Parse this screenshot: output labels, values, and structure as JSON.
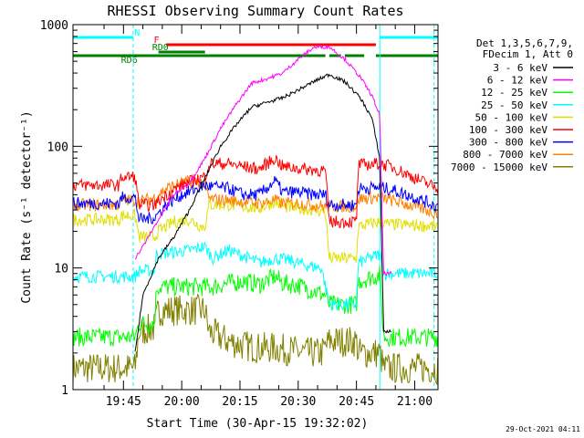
{
  "chart_data": {
    "type": "line",
    "title": "RHESSI Observing Summary Count Rates",
    "xlabel": "Start Time (30-Apr-15 19:32:02)",
    "ylabel": "Count Rate (s⁻¹ detector⁻¹)",
    "yscale": "log",
    "ylim": [
      1,
      1000
    ],
    "xlim_minutes": [
      0,
      94
    ],
    "x_ticks": [
      {
        "label": "19:45",
        "minute": 13
      },
      {
        "label": "20:00",
        "minute": 28
      },
      {
        "label": "20:15",
        "minute": 43
      },
      {
        "label": "20:30",
        "minute": 58
      },
      {
        "label": "20:45",
        "minute": 73
      },
      {
        "label": "21:00",
        "minute": 88
      }
    ],
    "y_ticks": [
      {
        "label": "1",
        "value": 1
      },
      {
        "label": "10",
        "value": 10
      },
      {
        "label": "100",
        "value": 100
      },
      {
        "label": "1000",
        "value": 1000
      }
    ],
    "legend_header": [
      "Det 1,3,5,6,7,9,",
      "FDecim 1, Att 0"
    ],
    "series": [
      {
        "name": "3 - 6 keV",
        "color": "#000000",
        "points": [
          [
            16,
            2
          ],
          [
            18,
            6
          ],
          [
            22,
            12
          ],
          [
            26,
            18
          ],
          [
            30,
            30
          ],
          [
            34,
            55
          ],
          [
            38,
            100
          ],
          [
            42,
            150
          ],
          [
            46,
            210
          ],
          [
            50,
            230
          ],
          [
            54,
            250
          ],
          [
            58,
            290
          ],
          [
            62,
            340
          ],
          [
            66,
            390
          ],
          [
            70,
            340
          ],
          [
            74,
            250
          ],
          [
            77,
            170
          ],
          [
            79,
            80
          ],
          [
            80,
            3
          ],
          [
            82,
            3
          ]
        ]
      },
      {
        "name": "6 - 12 keV",
        "color": "#ff00ff",
        "points": [
          [
            16,
            12
          ],
          [
            18,
            15
          ],
          [
            22,
            25
          ],
          [
            26,
            40
          ],
          [
            30,
            50
          ],
          [
            34,
            80
          ],
          [
            38,
            140
          ],
          [
            42,
            220
          ],
          [
            46,
            330
          ],
          [
            50,
            360
          ],
          [
            54,
            400
          ],
          [
            58,
            520
          ],
          [
            62,
            650
          ],
          [
            66,
            660
          ],
          [
            70,
            520
          ],
          [
            74,
            370
          ],
          [
            77,
            260
          ],
          [
            79,
            180
          ],
          [
            80,
            9
          ],
          [
            82,
            9
          ]
        ]
      },
      {
        "name": "12 - 25 keV",
        "color": "#00ff00",
        "points": [
          [
            0,
            2.7
          ],
          [
            16,
            2.7
          ],
          [
            17,
            3.5
          ],
          [
            21,
            3.5
          ],
          [
            21.5,
            7
          ],
          [
            36,
            7
          ],
          [
            40,
            7.5
          ],
          [
            44,
            7.8
          ],
          [
            48,
            7.3
          ],
          [
            52,
            8.5
          ],
          [
            54,
            7.5
          ],
          [
            58,
            7.2
          ],
          [
            62,
            6.5
          ],
          [
            65,
            6
          ],
          [
            66,
            5
          ],
          [
            73,
            5
          ],
          [
            73.5,
            7.8
          ],
          [
            79,
            8.8
          ],
          [
            80,
            2.7
          ],
          [
            94,
            2.7
          ]
        ]
      },
      {
        "name": "25 - 50 keV",
        "color": "#00ffff",
        "points": [
          [
            0,
            8.5
          ],
          [
            16,
            8.5
          ],
          [
            17,
            9.5
          ],
          [
            21,
            9.5
          ],
          [
            21.5,
            13
          ],
          [
            26,
            13.5
          ],
          [
            30,
            14
          ],
          [
            34,
            15
          ],
          [
            36,
            12
          ],
          [
            40,
            14
          ],
          [
            44,
            12.5
          ],
          [
            48,
            11
          ],
          [
            52,
            12
          ],
          [
            56,
            11.5
          ],
          [
            60,
            10.5
          ],
          [
            64,
            10
          ],
          [
            66,
            5
          ],
          [
            73,
            5
          ],
          [
            73.5,
            11
          ],
          [
            79,
            13
          ],
          [
            80,
            9
          ],
          [
            94,
            9
          ]
        ]
      },
      {
        "name": "50 - 100 keV",
        "color": "#e0e000",
        "points": [
          [
            0,
            25
          ],
          [
            12,
            25
          ],
          [
            12.5,
            27
          ],
          [
            16,
            27
          ],
          [
            17,
            18
          ],
          [
            21,
            18
          ],
          [
            22,
            20
          ],
          [
            26,
            24
          ],
          [
            30,
            25
          ],
          [
            33,
            22
          ],
          [
            34,
            22
          ],
          [
            35,
            33
          ],
          [
            40,
            33
          ],
          [
            44,
            32
          ],
          [
            48,
            31
          ],
          [
            52,
            35
          ],
          [
            54,
            32
          ],
          [
            58,
            31
          ],
          [
            62,
            30
          ],
          [
            65,
            29
          ],
          [
            66,
            12
          ],
          [
            73,
            12
          ],
          [
            73.5,
            22
          ],
          [
            79,
            24
          ],
          [
            80,
            23
          ],
          [
            94,
            22
          ]
        ]
      },
      {
        "name": "100 - 300 keV",
        "color": "#ff0000",
        "points": [
          [
            0,
            48
          ],
          [
            12,
            48
          ],
          [
            12.5,
            56
          ],
          [
            16,
            56
          ],
          [
            17,
            33
          ],
          [
            21,
            33
          ],
          [
            24,
            40
          ],
          [
            28,
            48
          ],
          [
            32,
            54
          ],
          [
            34,
            56
          ],
          [
            35,
            72
          ],
          [
            40,
            72
          ],
          [
            44,
            68
          ],
          [
            48,
            65
          ],
          [
            52,
            80
          ],
          [
            54,
            68
          ],
          [
            58,
            66
          ],
          [
            62,
            64
          ],
          [
            65,
            63
          ],
          [
            66,
            24
          ],
          [
            73,
            24
          ],
          [
            73.5,
            70
          ],
          [
            79,
            72
          ],
          [
            82,
            68
          ],
          [
            88,
            55
          ],
          [
            94,
            45
          ]
        ]
      },
      {
        "name": "300 - 800 keV",
        "color": "#0000ff",
        "points": [
          [
            0,
            34
          ],
          [
            12,
            34
          ],
          [
            12.5,
            38
          ],
          [
            16,
            38
          ],
          [
            17,
            25
          ],
          [
            21,
            26
          ],
          [
            24,
            33
          ],
          [
            28,
            40
          ],
          [
            32,
            45
          ],
          [
            34,
            48
          ],
          [
            35,
            47
          ],
          [
            40,
            45
          ],
          [
            44,
            40
          ],
          [
            48,
            40
          ],
          [
            52,
            52
          ],
          [
            54,
            42
          ],
          [
            58,
            42
          ],
          [
            62,
            40
          ],
          [
            65,
            40
          ],
          [
            66,
            33
          ],
          [
            73,
            33
          ],
          [
            73.5,
            45
          ],
          [
            79,
            46
          ],
          [
            82,
            44
          ],
          [
            88,
            38
          ],
          [
            94,
            32
          ]
        ]
      },
      {
        "name": "800 - 7000 keV",
        "color": "#ff8000",
        "points": [
          [
            0,
            33
          ],
          [
            12,
            33
          ],
          [
            12.5,
            36
          ],
          [
            16,
            36
          ],
          [
            17,
            35
          ],
          [
            21,
            38
          ],
          [
            24,
            45
          ],
          [
            28,
            50
          ],
          [
            32,
            52
          ],
          [
            34,
            48
          ],
          [
            35,
            37
          ],
          [
            40,
            36
          ],
          [
            44,
            35
          ],
          [
            48,
            34
          ],
          [
            52,
            36
          ],
          [
            54,
            34
          ],
          [
            58,
            34
          ],
          [
            62,
            33
          ],
          [
            65,
            32
          ],
          [
            66,
            32
          ],
          [
            73,
            32
          ],
          [
            73.5,
            37
          ],
          [
            79,
            38
          ],
          [
            82,
            36
          ],
          [
            88,
            32
          ],
          [
            94,
            28
          ]
        ]
      },
      {
        "name": "7000 - 15000 keV",
        "color": "#808000",
        "points": [
          [
            0,
            1.5
          ],
          [
            16,
            1.5
          ],
          [
            17,
            3
          ],
          [
            21,
            3.2
          ],
          [
            22,
            4.5
          ],
          [
            34,
            4.5
          ],
          [
            35,
            3
          ],
          [
            40,
            2.5
          ],
          [
            44,
            2.3
          ],
          [
            48,
            2.2
          ],
          [
            52,
            2.2
          ],
          [
            56,
            2.1
          ],
          [
            60,
            2
          ],
          [
            64,
            2
          ],
          [
            66,
            2.5
          ],
          [
            73,
            2.5
          ],
          [
            73.5,
            2
          ],
          [
            79,
            2
          ],
          [
            80,
            1.5
          ],
          [
            94,
            1.5
          ]
        ]
      }
    ],
    "flag_bars": [
      {
        "label": "N",
        "color": "#00ffff",
        "row": 0,
        "segments": [
          [
            0,
            15.5
          ],
          [
            79,
            94
          ]
        ]
      },
      {
        "label": "F",
        "color": "#ff0000",
        "row": 1,
        "segments": [
          [
            24,
            78
          ]
        ]
      },
      {
        "label": "RD0",
        "color": "#008000",
        "row": 2,
        "segments": [
          [
            22,
            34
          ]
        ]
      },
      {
        "label": "RD6",
        "color": "#008000",
        "row": 3,
        "segments": [
          [
            0,
            35
          ],
          [
            35,
            65
          ],
          [
            66,
            69
          ],
          [
            70,
            75
          ],
          [
            78,
            94
          ]
        ]
      }
    ],
    "flag_label_minutes": {
      "N": 16.5,
      "F": 21.5,
      "RD0": 22.5,
      "RD6": 14.5
    },
    "saa_lines_minutes": [
      15.5,
      79,
      93
    ]
  },
  "footer": {
    "date_stamp": "29-Oct-2021 04:11"
  }
}
